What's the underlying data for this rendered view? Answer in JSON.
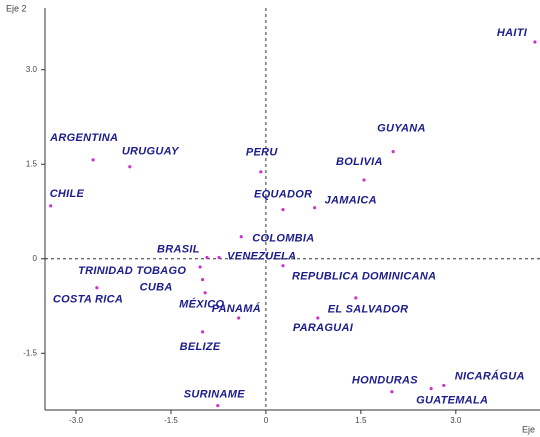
{
  "chart_data": {
    "type": "scatter",
    "x_label": "Eje",
    "y_label": "Eje 2",
    "labels": [
      "ARGENTINA",
      "URUGUAY",
      "CHILE",
      "PERU",
      "GUYANA",
      "BOLIVIA",
      "EQUADOR",
      "JAMAICA",
      "HAITI",
      "COLOMBIA",
      "BRASIL",
      "VENEZUELA",
      "TRINIDAD TOBAGO",
      "CUBA",
      "COSTA RICA",
      "MÉXICO",
      "REPUBLICA DOMINICANA",
      "PANAMÁ",
      "EL SALVADOR",
      "PARAGUAI",
      "BELIZE",
      "HONDURAS",
      "GUATEMALA",
      "NICARÁGUA",
      "SURINAME"
    ],
    "x": [
      -2.73,
      -2.15,
      -3.4,
      -0.08,
      2.01,
      1.55,
      0.27,
      0.77,
      4.25,
      -0.39,
      -0.93,
      -0.74,
      -1.04,
      -1.0,
      -2.67,
      -0.96,
      0.27,
      -0.43,
      1.42,
      0.82,
      -1.0,
      1.99,
      2.61,
      2.81,
      -0.76
    ],
    "values": [
      1.57,
      1.46,
      0.84,
      1.38,
      1.7,
      1.25,
      0.78,
      0.81,
      3.44,
      0.35,
      0.02,
      0.02,
      -0.13,
      -0.33,
      -0.46,
      -0.54,
      -0.11,
      -0.94,
      -0.62,
      -0.94,
      -1.16,
      -2.11,
      -2.06,
      -2.01,
      -2.33
    ],
    "color": "#cc33cc",
    "xlim": [
      -3.49,
      4.33
    ],
    "ylim": [
      -2.4,
      3.98
    ],
    "xticks": [
      {
        "value": -3,
        "label": "-3.0"
      },
      -1.5,
      0,
      1.5,
      {
        "value": 3,
        "label": "3.0"
      }
    ],
    "yticks": [
      {
        "value": -1.5,
        "label": "-1.5"
      },
      0,
      1.5,
      {
        "value": 3,
        "label": "3.0"
      }
    ],
    "grid": false
  }
}
